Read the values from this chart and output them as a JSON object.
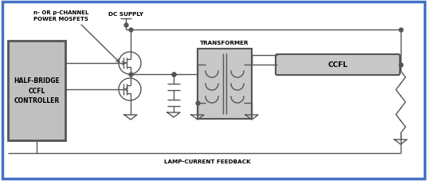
{
  "bg_color": "#ffffff",
  "border_color": "#4472c4",
  "line_color": "#555555",
  "box_fill": "#c0c0c0",
  "figsize": [
    5.36,
    2.28
  ],
  "dpi": 100,
  "labels": {
    "controller": "HALF-BRIDGE\nCCFL\nCONTROLLER",
    "mosfets": "n- OR p-CHANNEL\nPOWER MOSFETS",
    "dc_supply": "DC SUPPLY",
    "transformer": "TRANSFORMER",
    "ccfl": "CCFL",
    "feedback": "LAMP-CURRENT FEEDBACK"
  }
}
